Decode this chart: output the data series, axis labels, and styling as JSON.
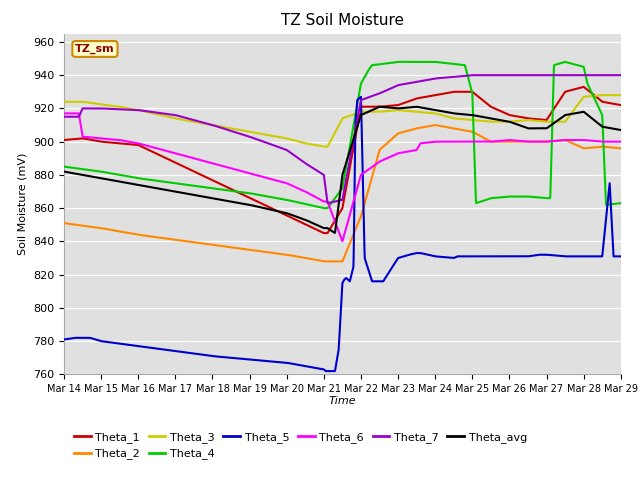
{
  "title": "TZ Soil Moisture",
  "xlabel": "Time",
  "ylabel": "Soil Moisture (mV)",
  "ylim": [
    760,
    965
  ],
  "yticks": [
    760,
    780,
    800,
    820,
    840,
    860,
    880,
    900,
    920,
    940,
    960
  ],
  "bg_color": "#e0e0e0",
  "series_colors": {
    "Theta_1": "#cc0000",
    "Theta_2": "#ff8800",
    "Theta_3": "#cccc00",
    "Theta_4": "#00cc00",
    "Theta_5": "#0000cc",
    "Theta_6": "#ff00ff",
    "Theta_7": "#9900cc",
    "Theta_avg": "#000000"
  },
  "legend_label": "TZ_sm",
  "xtick_labels": [
    "Mar 14",
    "Mar 15",
    "Mar 16",
    "Mar 17",
    "Mar 18",
    "Mar 19",
    "Mar 20",
    "Mar 21",
    "Mar 22",
    "Mar 23",
    "Mar 24",
    "Mar 25",
    "Mar 26",
    "Mar 27",
    "Mar 28",
    "Mar 29"
  ],
  "line_width": 1.5
}
